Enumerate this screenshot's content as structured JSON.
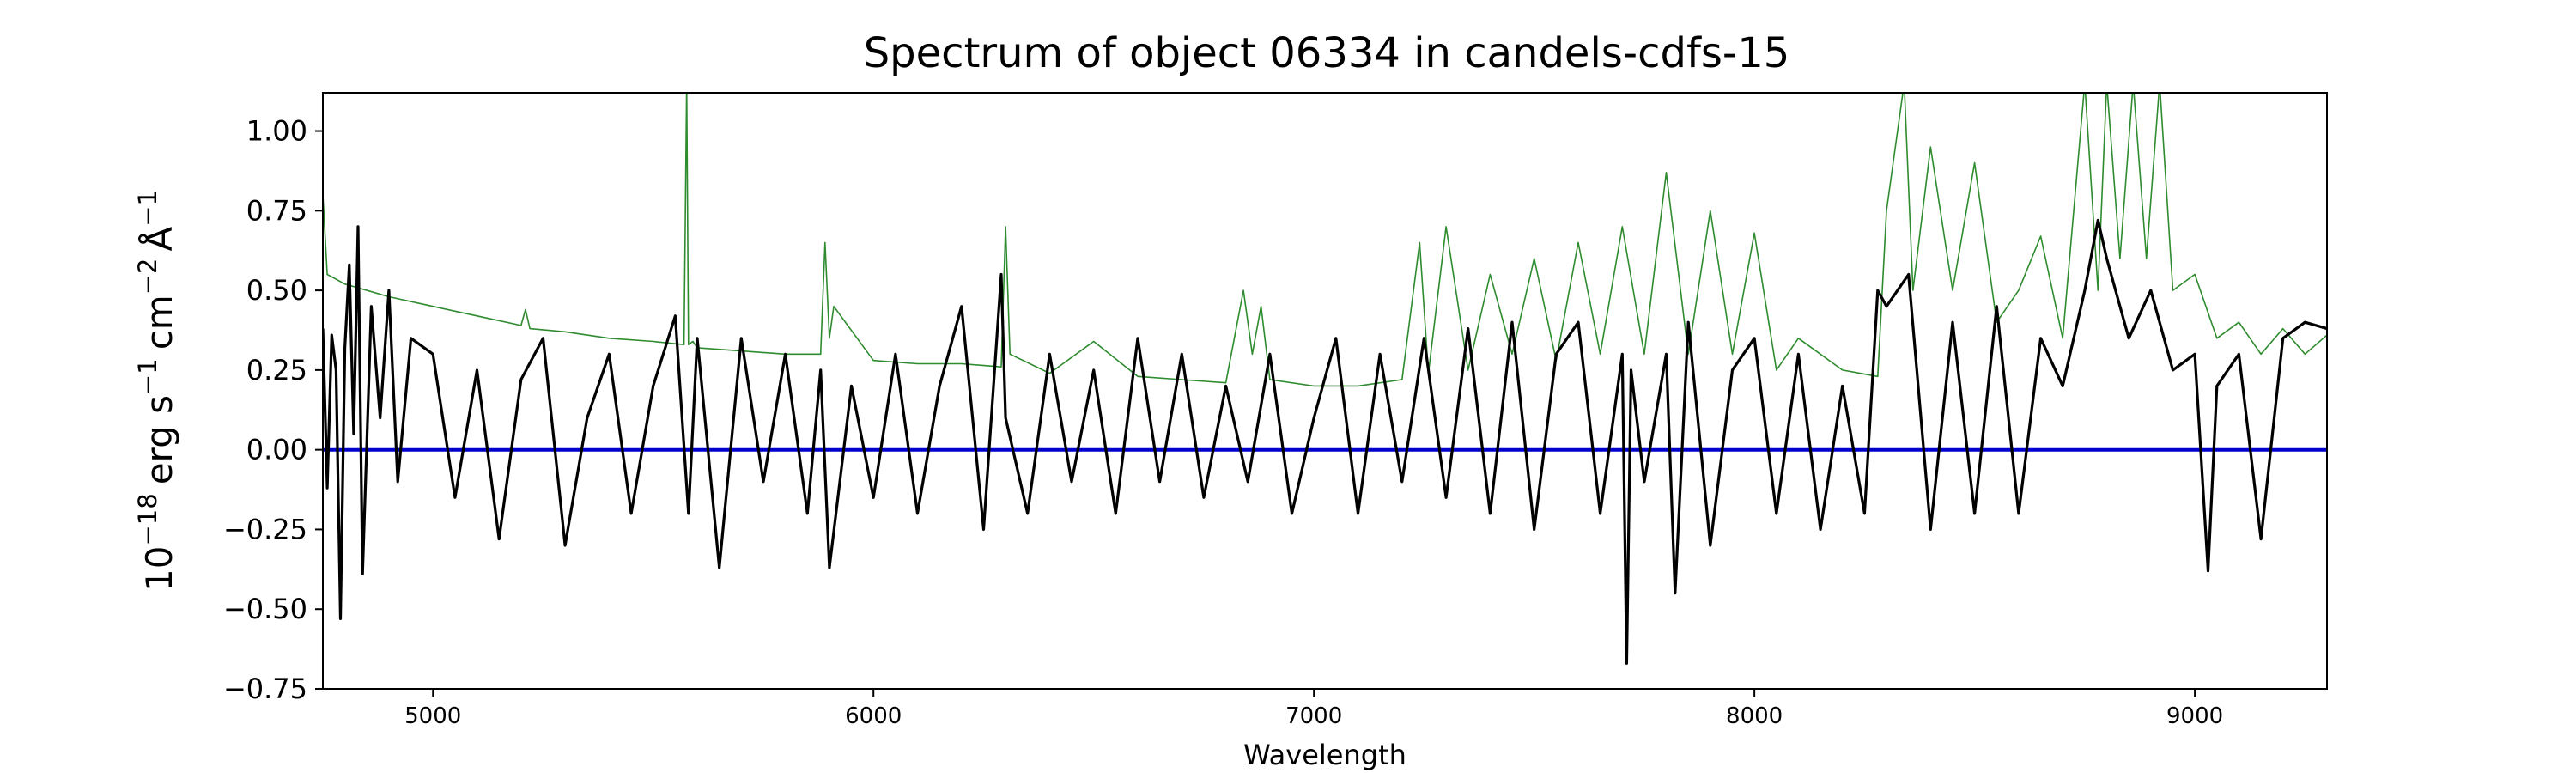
{
  "chart_data": {
    "type": "line",
    "title": "Spectrum of object 06334 in candels-cdfs-15",
    "xlabel": "Wavelength",
    "ylabel": "10^-18 erg s^-1 cm^-2 Å^-1",
    "ylabel_parts": {
      "base": "10",
      "exp": "−18",
      "unit1": "erg s",
      "exp1": "−1",
      "unit2": "cm",
      "exp2": "−2",
      "unit3": "Å",
      "exp3": "−1"
    },
    "xlim": [
      4750,
      9300
    ],
    "ylim": [
      -0.75,
      1.12
    ],
    "x_ticks": [
      5000,
      6000,
      7000,
      8000,
      9000
    ],
    "x_tick_labels": [
      "5000",
      "6000",
      "7000",
      "8000",
      "9000"
    ],
    "y_ticks": [
      -0.75,
      -0.5,
      -0.25,
      0.0,
      0.25,
      0.5,
      0.75,
      1.0
    ],
    "y_tick_labels": [
      "−0.75",
      "−0.50",
      "−0.25",
      "0.00",
      "0.25",
      "0.50",
      "0.75",
      "1.00"
    ],
    "grid": false,
    "legend": "none",
    "series": [
      {
        "role": "flux",
        "color": "#000000",
        "x": [
          4750,
          4760,
          4770,
          4780,
          4790,
          4800,
          4810,
          4820,
          4830,
          4840,
          4860,
          4880,
          4900,
          4920,
          4950,
          5000,
          5050,
          5100,
          5150,
          5200,
          5250,
          5300,
          5350,
          5400,
          5450,
          5500,
          5550,
          5580,
          5600,
          5650,
          5700,
          5750,
          5800,
          5850,
          5880,
          5900,
          5950,
          6000,
          6050,
          6100,
          6150,
          6200,
          6250,
          6290,
          6300,
          6350,
          6400,
          6450,
          6500,
          6550,
          6600,
          6650,
          6700,
          6750,
          6800,
          6850,
          6900,
          6950,
          7000,
          7050,
          7100,
          7150,
          7200,
          7250,
          7300,
          7350,
          7400,
          7450,
          7500,
          7550,
          7600,
          7650,
          7700,
          7710,
          7720,
          7750,
          7800,
          7820,
          7850,
          7900,
          7950,
          8000,
          8050,
          8100,
          8150,
          8200,
          8250,
          8280,
          8300,
          8350,
          8400,
          8450,
          8500,
          8550,
          8600,
          8650,
          8700,
          8750,
          8780,
          8800,
          8850,
          8900,
          8950,
          9000,
          9030,
          9050,
          9100,
          9150,
          9200,
          9250,
          9300
        ],
        "y": [
          0.38,
          -0.12,
          0.36,
          0.25,
          -0.53,
          0.32,
          0.58,
          0.05,
          0.7,
          -0.39,
          0.45,
          0.1,
          0.5,
          -0.1,
          0.35,
          0.3,
          -0.15,
          0.25,
          -0.28,
          0.22,
          0.35,
          -0.3,
          0.1,
          0.3,
          -0.2,
          0.2,
          0.42,
          -0.2,
          0.35,
          -0.37,
          0.35,
          -0.1,
          0.3,
          -0.2,
          0.25,
          -0.37,
          0.2,
          -0.15,
          0.3,
          -0.2,
          0.2,
          0.45,
          -0.25,
          0.55,
          0.1,
          -0.2,
          0.3,
          -0.1,
          0.25,
          -0.2,
          0.35,
          -0.1,
          0.3,
          -0.15,
          0.2,
          -0.1,
          0.3,
          -0.2,
          0.1,
          0.35,
          -0.2,
          0.3,
          -0.1,
          0.35,
          -0.15,
          0.38,
          -0.2,
          0.4,
          -0.25,
          0.3,
          0.4,
          -0.2,
          0.3,
          -0.67,
          0.25,
          -0.1,
          0.3,
          -0.45,
          0.4,
          -0.3,
          0.25,
          0.35,
          -0.2,
          0.3,
          -0.25,
          0.2,
          -0.2,
          0.5,
          0.45,
          0.55,
          -0.25,
          0.4,
          -0.2,
          0.45,
          -0.2,
          0.35,
          0.2,
          0.5,
          0.72,
          0.6,
          0.35,
          0.5,
          0.25,
          0.3,
          -0.38,
          0.2,
          0.3,
          -0.28,
          0.35,
          0.4,
          0.38
        ]
      },
      {
        "role": "error",
        "color": "#2e8b2e",
        "x": [
          4750,
          4760,
          4800,
          4900,
          5000,
          5100,
          5200,
          5210,
          5220,
          5300,
          5400,
          5500,
          5570,
          5576,
          5580,
          5590,
          5600,
          5700,
          5800,
          5880,
          5890,
          5900,
          5910,
          6000,
          6100,
          6200,
          6290,
          6300,
          6310,
          6400,
          6500,
          6600,
          6700,
          6800,
          6840,
          6860,
          6880,
          6900,
          7000,
          7100,
          7200,
          7240,
          7260,
          7300,
          7350,
          7400,
          7450,
          7500,
          7550,
          7600,
          7650,
          7700,
          7750,
          7800,
          7850,
          7900,
          7950,
          8000,
          8050,
          8100,
          8200,
          8280,
          8300,
          8340,
          8360,
          8400,
          8450,
          8500,
          8550,
          8600,
          8650,
          8700,
          8750,
          8780,
          8800,
          8830,
          8860,
          8890,
          8920,
          8950,
          9000,
          9050,
          9100,
          9150,
          9200,
          9250,
          9300
        ],
        "y": [
          0.8,
          0.55,
          0.52,
          0.48,
          0.45,
          0.42,
          0.39,
          0.44,
          0.38,
          0.37,
          0.35,
          0.34,
          0.33,
          1.15,
          0.33,
          0.34,
          0.32,
          0.31,
          0.3,
          0.3,
          0.65,
          0.35,
          0.45,
          0.28,
          0.27,
          0.27,
          0.26,
          0.7,
          0.3,
          0.24,
          0.34,
          0.23,
          0.22,
          0.21,
          0.5,
          0.3,
          0.45,
          0.22,
          0.2,
          0.2,
          0.22,
          0.65,
          0.24,
          0.7,
          0.25,
          0.55,
          0.3,
          0.6,
          0.28,
          0.65,
          0.3,
          0.7,
          0.3,
          0.87,
          0.3,
          0.75,
          0.3,
          0.68,
          0.25,
          0.35,
          0.25,
          0.23,
          0.75,
          1.15,
          0.5,
          0.95,
          0.5,
          0.9,
          0.4,
          0.5,
          0.67,
          0.35,
          1.15,
          0.5,
          1.15,
          0.6,
          1.15,
          0.6,
          1.15,
          0.5,
          0.55,
          0.35,
          0.4,
          0.3,
          0.38,
          0.3,
          0.36
        ]
      },
      {
        "role": "zero-line",
        "color": "#0000cc",
        "x": [
          4750,
          9300
        ],
        "y": [
          0,
          0
        ]
      }
    ]
  }
}
